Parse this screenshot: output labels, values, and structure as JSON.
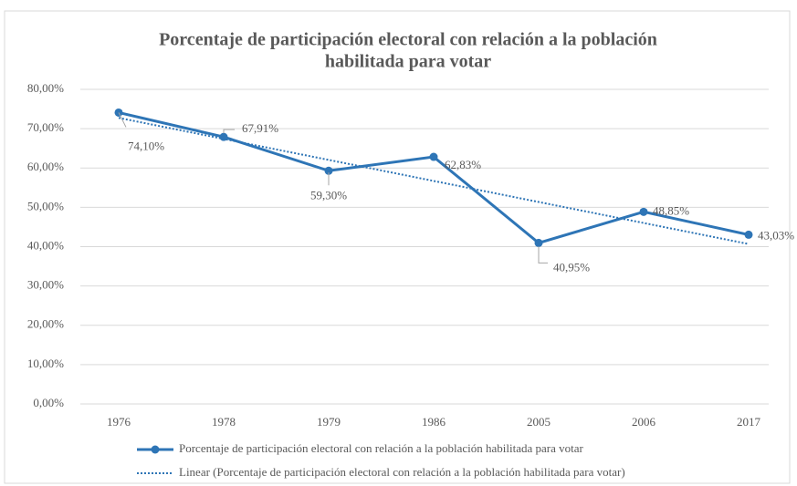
{
  "chart_data": {
    "type": "line",
    "title": [
      "Porcentaje de participación electoral con relación a la población",
      "habilitada para votar"
    ],
    "categories": [
      "1976",
      "1978",
      "1979",
      "1986",
      "2005",
      "2006",
      "2017"
    ],
    "series": [
      {
        "name": "Porcentaje de participación electoral con relación a la población habilitada para votar",
        "color": "#2e75b6",
        "style": "solid",
        "values": [
          74.1,
          67.91,
          59.3,
          62.83,
          40.95,
          48.85,
          43.03
        ],
        "value_labels": [
          "74,10%",
          "67,91%",
          "59,30%",
          "62,83%",
          "40,95%",
          "48,85%",
          "43,03%"
        ]
      },
      {
        "name": "Linear (Porcentaje de participación electoral con relación a la población habilitada para votar)",
        "color": "#2e75b6",
        "style": "dotted",
        "values": [
          72.75,
          67.4,
          62.06,
          56.71,
          51.36,
          46.02,
          40.67
        ]
      }
    ],
    "ylim": [
      0,
      80
    ],
    "yticks": [
      {
        "value": 0,
        "label": "0,00%"
      },
      {
        "value": 10,
        "label": "10,00%"
      },
      {
        "value": 20,
        "label": "20,00%"
      },
      {
        "value": 30,
        "label": "30,00%"
      },
      {
        "value": 40,
        "label": "40,00%"
      },
      {
        "value": 50,
        "label": "50,00%"
      },
      {
        "value": 60,
        "label": "60,00%"
      },
      {
        "value": 70,
        "label": "70,00%"
      },
      {
        "value": 80,
        "label": "80,00%"
      }
    ],
    "grid": true,
    "legend": "bottom"
  }
}
